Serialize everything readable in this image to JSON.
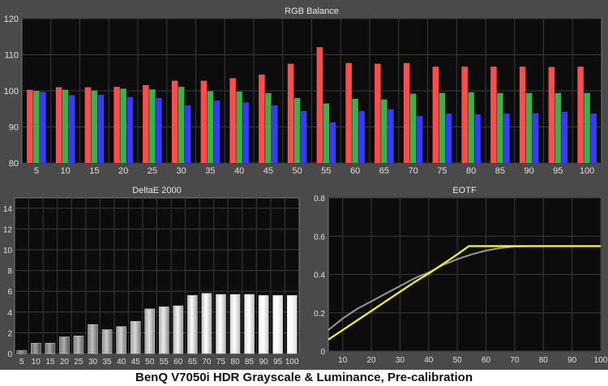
{
  "footer_caption": "BenQ V7050i HDR Grayscale & Luminance, Pre-calibration",
  "colors": {
    "red": "#ff4d4d",
    "green": "#3cb04a",
    "blue": "#3a3aff",
    "eotf_target": "#9a9a9a",
    "eotf_measured": "#ffff22",
    "panel_bg": "#4a4a4a"
  },
  "chart_data": [
    {
      "type": "bar",
      "title": "RGB Balance",
      "categories": [
        "5",
        "10",
        "15",
        "20",
        "25",
        "30",
        "35",
        "40",
        "45",
        "50",
        "55",
        "60",
        "65",
        "70",
        "75",
        "80",
        "85",
        "90",
        "95",
        "100"
      ],
      "ylim": [
        80,
        120
      ],
      "yticks": [
        80,
        90,
        100,
        110,
        120
      ],
      "grid": true,
      "series": [
        {
          "values": [
            100.3,
            101,
            101,
            101.1,
            101.6,
            102.8,
            102.8,
            103.5,
            104.5,
            107.5,
            112.1,
            107.7,
            107.5,
            107.7,
            106.7,
            106.7,
            106.7,
            106.7,
            106.6,
            106.7
          ]
        },
        {
          "values": [
            100,
            100.3,
            100.1,
            100.6,
            100.4,
            101.1,
            99.9,
            99.8,
            99.4,
            98,
            96.5,
            97.8,
            97.6,
            99.2,
            99.4,
            99.6,
            99.4,
            99.4,
            99.4,
            99.4
          ]
        },
        {
          "values": [
            99.7,
            98.8,
            98.9,
            98.3,
            98,
            96,
            97.3,
            96.8,
            96,
            94.4,
            91.3,
            94.4,
            94.9,
            93,
            93.7,
            93.5,
            93.7,
            93.8,
            94.2,
            93.7
          ]
        }
      ]
    },
    {
      "type": "bar",
      "title": "DeltaE 2000",
      "categories": [
        "5",
        "10",
        "15",
        "20",
        "25",
        "30",
        "35",
        "40",
        "45",
        "50",
        "55",
        "60",
        "65",
        "70",
        "75",
        "80",
        "85",
        "90",
        "95",
        "100"
      ],
      "values": [
        0.3,
        1,
        1,
        1.6,
        1.7,
        2.8,
        2.3,
        2.6,
        3.1,
        4.3,
        4.5,
        4.6,
        5.6,
        5.8,
        5.7,
        5.7,
        5.7,
        5.6,
        5.6,
        5.6
      ],
      "ylim": [
        0,
        15
      ],
      "yticks": [
        0,
        2,
        4,
        6,
        8,
        10,
        12,
        14
      ],
      "grid": true
    },
    {
      "type": "line",
      "title": "EOTF",
      "xlim": [
        5,
        100
      ],
      "ylim": [
        0,
        0.8
      ],
      "xticks": [
        10,
        20,
        30,
        40,
        50,
        60,
        70,
        80,
        90,
        100
      ],
      "yticks": [
        0,
        0.2,
        0.4,
        0.6,
        0.8
      ],
      "grid": true,
      "series": [
        {
          "x": [
            5,
            10,
            15,
            20,
            25,
            30,
            35,
            40,
            45,
            50,
            55,
            60,
            65,
            70,
            75,
            80,
            85,
            90,
            95,
            100
          ],
          "values": [
            0.11,
            0.17,
            0.22,
            0.26,
            0.3,
            0.34,
            0.38,
            0.41,
            0.45,
            0.48,
            0.505,
            0.525,
            0.538,
            0.546,
            0.548,
            0.548,
            0.548,
            0.548,
            0.548,
            0.548
          ]
        },
        {
          "x": [
            5,
            10,
            15,
            20,
            25,
            30,
            35,
            40,
            45,
            50,
            54,
            55,
            60,
            65,
            70,
            75,
            80,
            85,
            90,
            95,
            100
          ],
          "values": [
            0.06,
            0.11,
            0.16,
            0.21,
            0.26,
            0.31,
            0.36,
            0.405,
            0.455,
            0.505,
            0.548,
            0.548,
            0.548,
            0.548,
            0.548,
            0.548,
            0.548,
            0.548,
            0.548,
            0.548,
            0.548
          ]
        }
      ]
    }
  ]
}
